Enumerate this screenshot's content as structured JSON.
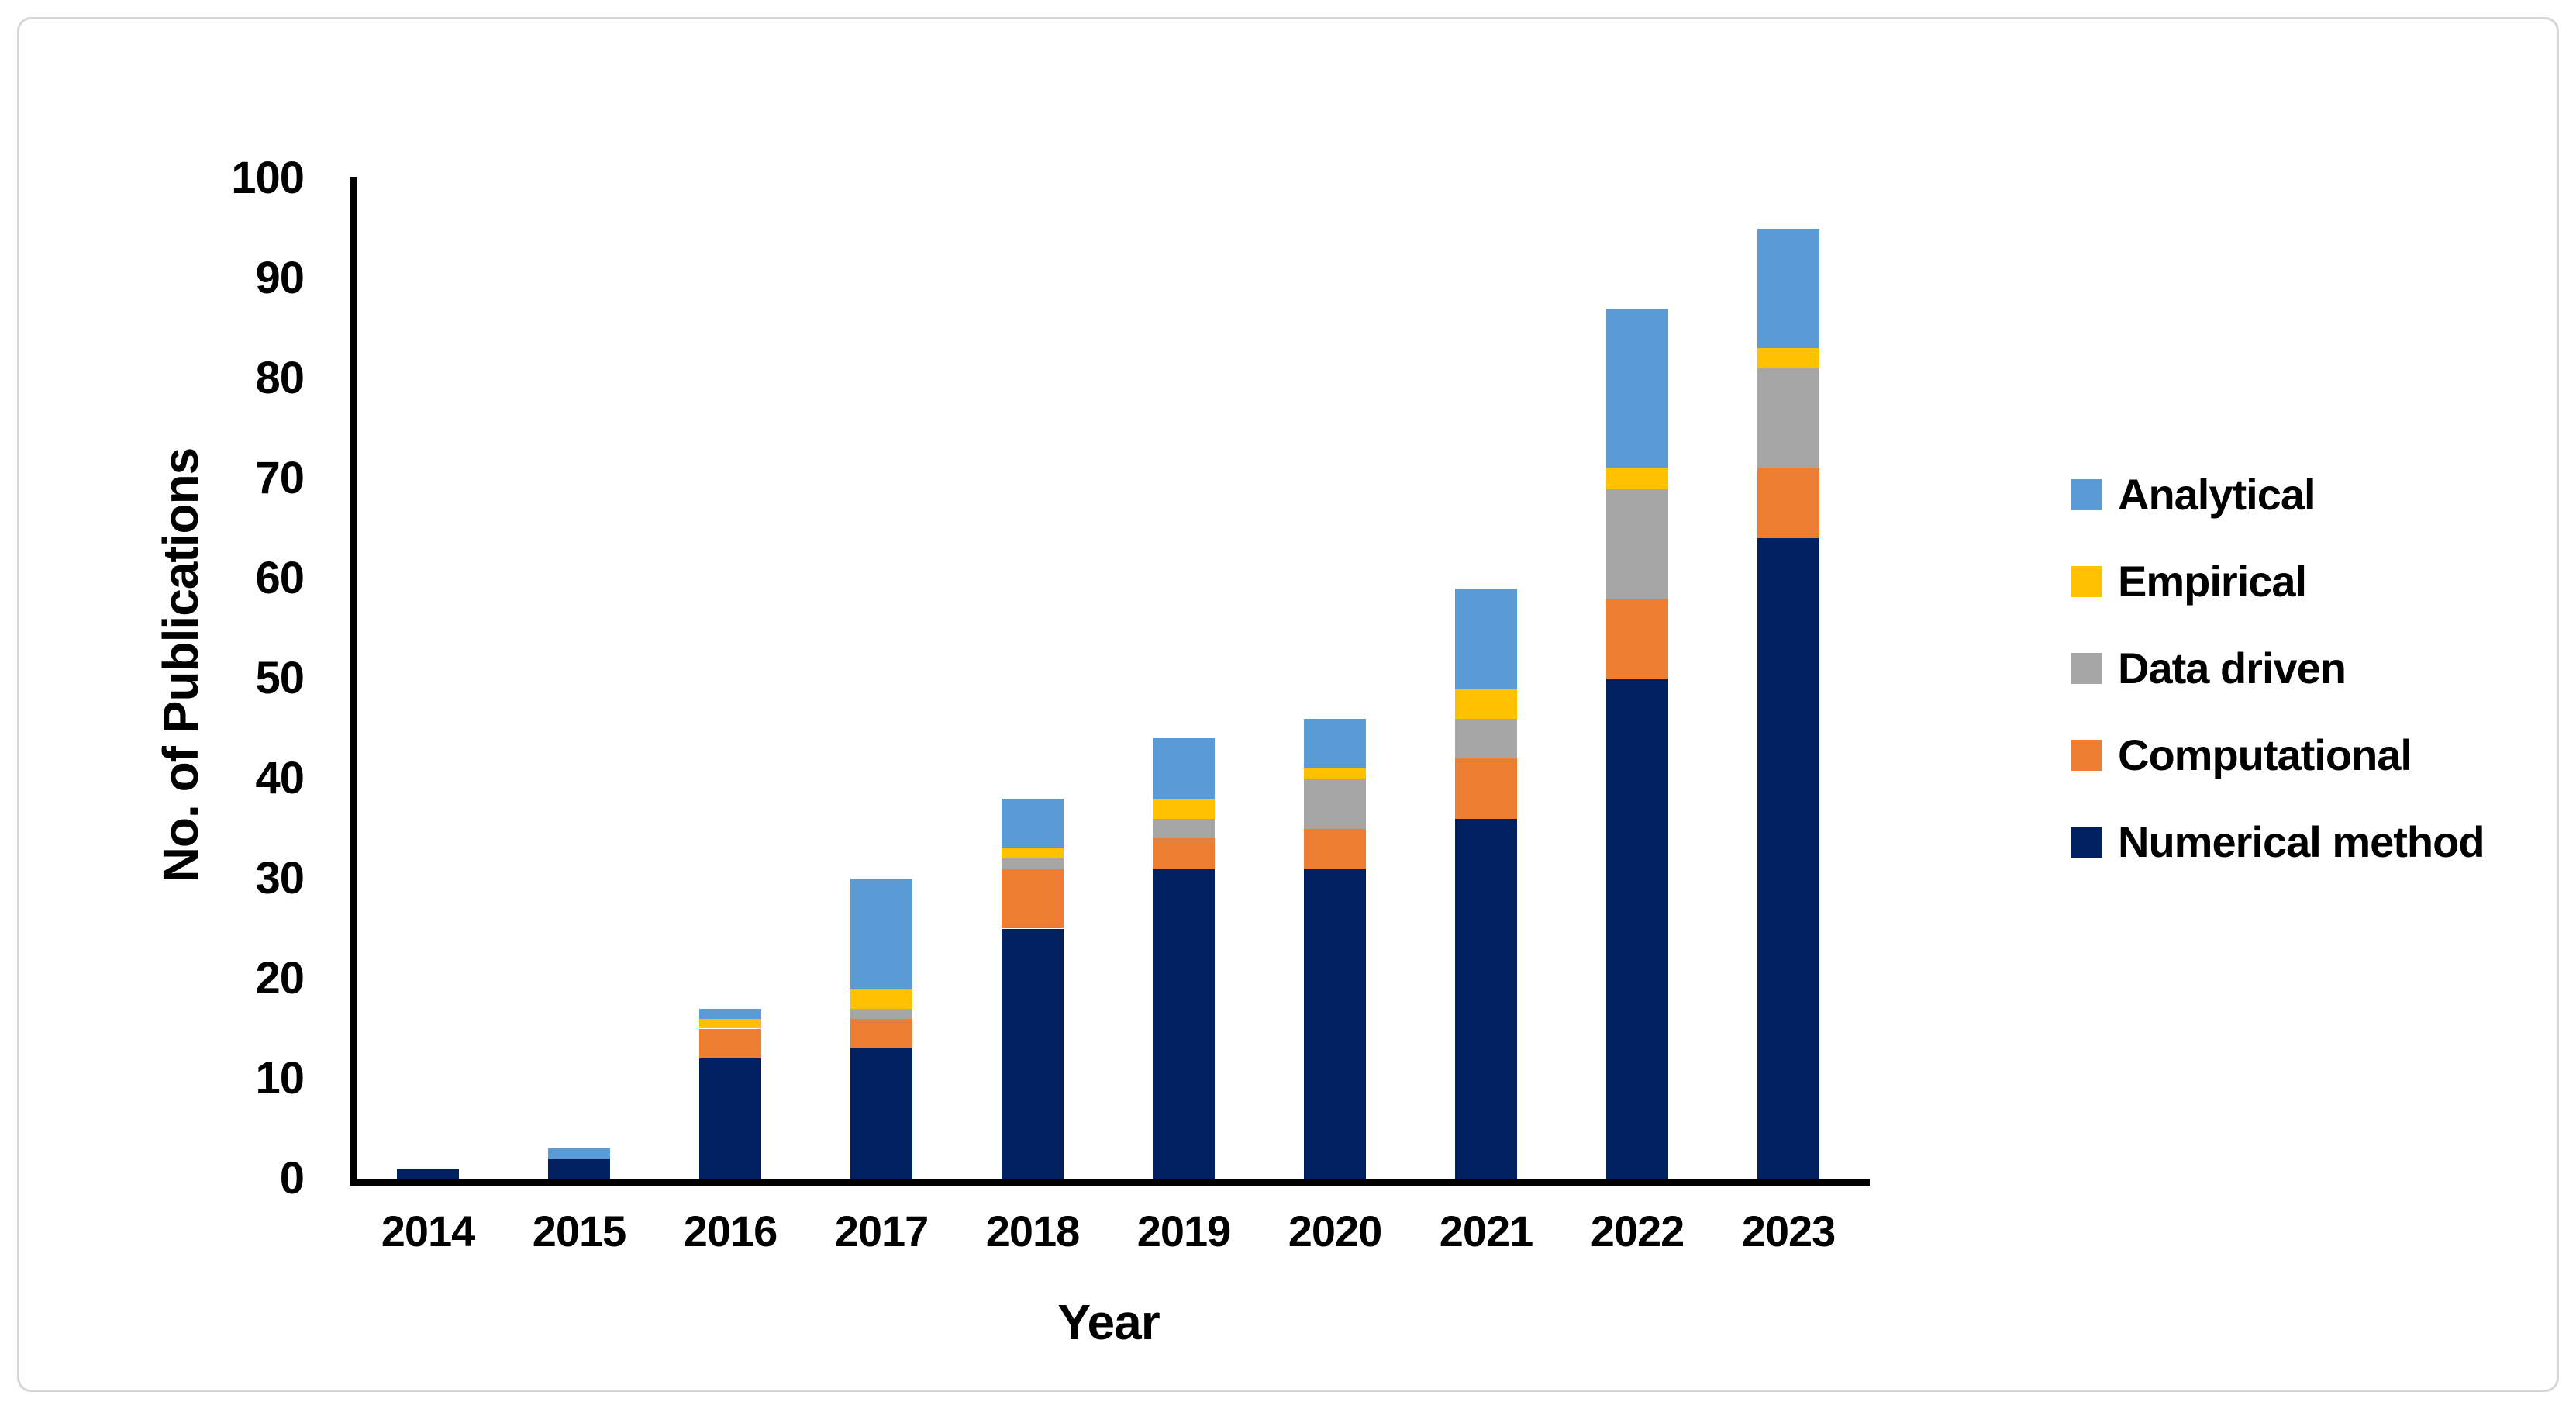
{
  "figure": {
    "background": "#ffffff",
    "border_color": "#d6d6d6",
    "axis_color": "#000000",
    "text_color": "#000000"
  },
  "chart_data": {
    "type": "bar",
    "stacked": true,
    "title": "",
    "xlabel": "Year",
    "ylabel": "No. of Publications",
    "categories": [
      "2014",
      "2015",
      "2016",
      "2017",
      "2018",
      "2019",
      "2020",
      "2021",
      "2022",
      "2023"
    ],
    "series": [
      {
        "name": "Numerical method",
        "color": "#002060",
        "values": [
          1,
          2,
          12,
          13,
          25,
          31,
          31,
          36,
          50,
          64
        ]
      },
      {
        "name": "Computational",
        "color": "#ED7D31",
        "values": [
          0,
          0,
          3,
          3,
          6,
          3,
          4,
          6,
          8,
          7
        ]
      },
      {
        "name": "Data driven",
        "color": "#A6A6A6",
        "values": [
          0,
          0,
          0,
          1,
          1,
          2,
          5,
          4,
          11,
          10
        ]
      },
      {
        "name": "Empirical",
        "color": "#FFC000",
        "values": [
          0,
          0,
          1,
          2,
          1,
          2,
          1,
          3,
          2,
          2
        ]
      },
      {
        "name": "Analytical",
        "color": "#5B9BD5",
        "values": [
          0,
          1,
          1,
          11,
          5,
          6,
          5,
          10,
          16,
          12
        ]
      }
    ],
    "totals": [
      1,
      3,
      17,
      30,
      38,
      44,
      46,
      59,
      87,
      95
    ],
    "ylim": [
      0,
      100
    ],
    "yticks": [
      0,
      10,
      20,
      30,
      40,
      50,
      60,
      70,
      80,
      90,
      100
    ],
    "grid": false,
    "legend_position": "right",
    "legend_order": [
      "Analytical",
      "Empirical",
      "Data driven",
      "Computational",
      "Numerical method"
    ]
  }
}
